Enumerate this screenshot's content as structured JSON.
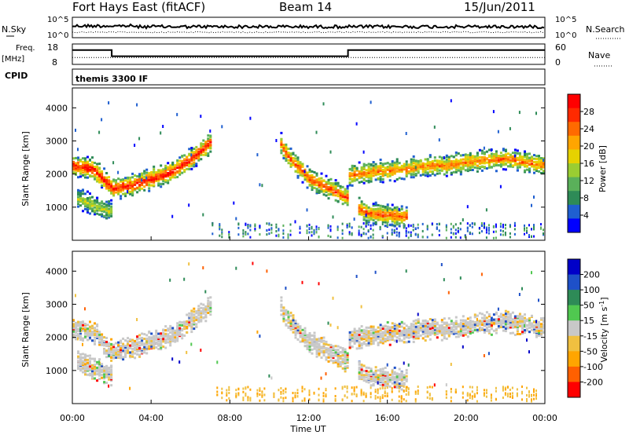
{
  "header": {
    "station": "Fort Hays East (fitACF)",
    "beam": "Beam 14",
    "date": "15/Jun/2011"
  },
  "top_panels": {
    "nsky_label": "N.Sky",
    "nsky_tick_top": "10^5",
    "nsky_tick_bottom": "10^0",
    "nsearch_label": "N.Search",
    "nsearch_tick_top": "10^5",
    "nsearch_tick_bottom": "10^0",
    "freq_label": "Freq.",
    "freq_unit": "[MHz]",
    "freq_tick_top": "18",
    "freq_tick_bottom": "8",
    "nave_label": "Nave",
    "nave_tick_top": "60",
    "nave_tick_bottom": "0",
    "cpid_label": "CPID",
    "cpid_value": "themis 3300 IF"
  },
  "colors": {
    "power": [
      "#0000ff",
      "#1f5fd0",
      "#2e8b57",
      "#5ab05a",
      "#9acd32",
      "#e6d200",
      "#ffa500",
      "#ff6a00",
      "#ff2a00",
      "#ff0000"
    ],
    "velocity": [
      "#0000c8",
      "#1e50c8",
      "#2e8b57",
      "#50c850",
      "#c8c8c8",
      "#f0c040",
      "#ffa500",
      "#ff6000",
      "#ff0000"
    ]
  },
  "chart_data": [
    {
      "type": "line",
      "title": "N.Sky / N.Search",
      "xlabel": "",
      "ylabel": "N.Sky",
      "ylabel_right": "N.Search",
      "y_ticks": [
        "10^0",
        "10^5"
      ],
      "y_scale": "log",
      "x_range_hours": [
        0,
        24
      ],
      "series": [
        {
          "name": "N.Sky",
          "style": "solid",
          "values_approx": "near top of panel, slightly variable"
        },
        {
          "name": "N.Search",
          "style": "dotted",
          "values_approx": "lower, steady"
        }
      ]
    },
    {
      "type": "line",
      "title": "Freq. / Nave",
      "ylabel": "Freq. [MHz]",
      "ylabel_right": "Nave",
      "ylim": [
        8,
        18
      ],
      "ylim_right": [
        0,
        60
      ],
      "series": [
        {
          "name": "Freq.",
          "style": "solid",
          "x": [
            0,
            2,
            2,
            14,
            14,
            24
          ],
          "y": [
            15,
            15,
            12,
            12,
            15,
            15
          ]
        },
        {
          "name": "Nave",
          "style": "dotted",
          "x": [
            0,
            24
          ],
          "y": [
            20,
            20
          ]
        }
      ]
    },
    {
      "type": "heatmap",
      "title": "Power",
      "ylabel": "Slant Range [km]",
      "xlim_hours": [
        0,
        24
      ],
      "ylim": [
        0,
        4600
      ],
      "y_ticks": [
        1000,
        2000,
        3000,
        4000
      ],
      "colorbar_label": "Power [dB]",
      "colorbar_ticks": [
        "4",
        "8",
        "12",
        "16",
        "20",
        "24",
        "28"
      ],
      "bands": [
        {
          "x": [
            0,
            1,
            2,
            3,
            4,
            5,
            6,
            7
          ],
          "y": [
            2300,
            2200,
            1600,
            1700,
            1900,
            2100,
            2500,
            3000
          ],
          "peak_power": 28
        },
        {
          "x": [
            0.2,
            1,
            2
          ],
          "y": [
            1300,
            1100,
            900
          ],
          "peak_power": 14
        },
        {
          "x": [
            10.5,
            11,
            12,
            13,
            14
          ],
          "y": [
            3000,
            2500,
            1900,
            1600,
            1300
          ],
          "peak_power": 24
        },
        {
          "x": [
            14,
            15,
            16,
            17,
            18,
            19,
            20,
            21,
            22,
            23,
            24
          ],
          "y": [
            2000,
            2100,
            2150,
            2200,
            2300,
            2300,
            2400,
            2450,
            2500,
            2400,
            2300
          ],
          "peak_power": 22
        },
        {
          "x": [
            14.5,
            15,
            16,
            17
          ],
          "y": [
            1000,
            850,
            800,
            750
          ],
          "peak_power": 24
        }
      ]
    },
    {
      "type": "heatmap",
      "title": "Velocity",
      "xlabel": "Time UT",
      "ylabel": "Slant Range [km]",
      "xlim_hours": [
        0,
        24
      ],
      "x_ticks": [
        "00:00",
        "04:00",
        "08:00",
        "12:00",
        "16:00",
        "20:00",
        "00:00"
      ],
      "ylim": [
        0,
        4600
      ],
      "y_ticks": [
        1000,
        2000,
        3000,
        4000
      ],
      "colorbar_label": "Velocity [m s^-1]",
      "colorbar_ticks": [
        "200",
        "100",
        "50",
        "15",
        "-15",
        "-50",
        "-100",
        "-200"
      ]
    }
  ],
  "axes": {
    "x_ticks": [
      "00:00",
      "04:00",
      "08:00",
      "12:00",
      "16:00",
      "20:00",
      "00:00"
    ],
    "x_label": "Time UT",
    "y_ticks": [
      "1000",
      "2000",
      "3000",
      "4000"
    ],
    "y_label": "Slant Range [km]",
    "power_cb_label": "Power [dB]",
    "power_cb_ticks": [
      "28",
      "24",
      "20",
      "16",
      "12",
      "8",
      "4"
    ],
    "vel_cb_label_main": "Velocity [m s",
    "vel_cb_label_sup": "-1",
    "vel_cb_label_end": "]",
    "vel_cb_ticks": [
      "200",
      "100",
      "50",
      "15",
      "-15",
      "-50",
      "-100",
      "-200"
    ]
  }
}
